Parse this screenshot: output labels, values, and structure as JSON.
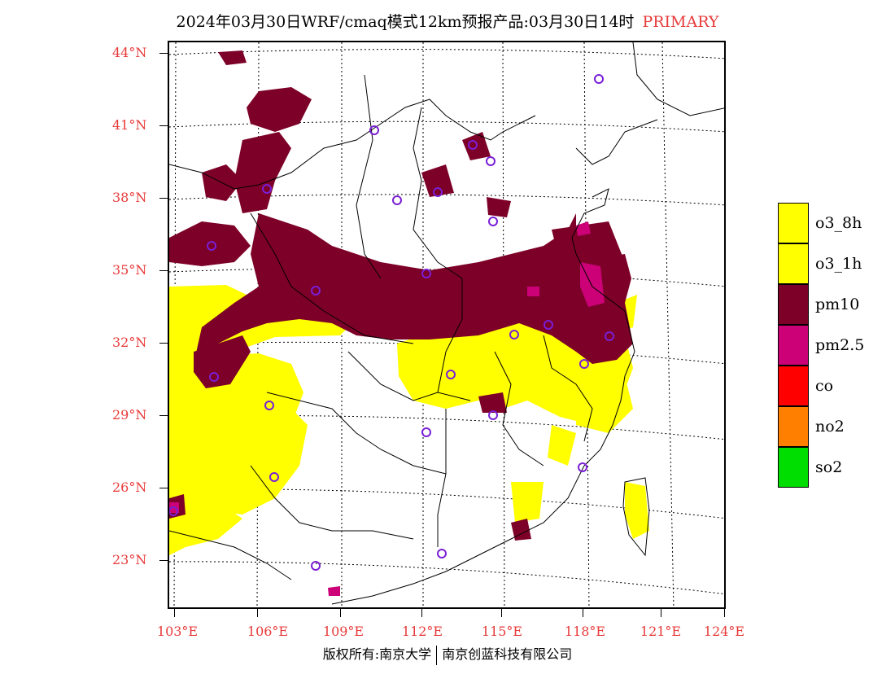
{
  "title": {
    "main": "2024年03月30日WRF/cmaq模式12km预报产品:03月30日14时",
    "tag": "PRIMARY"
  },
  "colors": {
    "o3_8h": "#ffff00",
    "o3_1h": "#ffff00",
    "pm10": "#7d0028",
    "pm2_5": "#cc0077",
    "co": "#ff0000",
    "no2": "#ff7f00",
    "so2": "#00dd00",
    "label_red": "#e83a3a",
    "station_ring": "#7a1fd6"
  },
  "lat_labels": [
    "44°N",
    "41°N",
    "38°N",
    "35°N",
    "32°N",
    "29°N",
    "26°N",
    "23°N"
  ],
  "lon_labels": [
    "103°E",
    "106°E",
    "109°E",
    "112°E",
    "115°E",
    "118°E",
    "121°E",
    "124°E"
  ],
  "legend": [
    {
      "label": "o3_8h",
      "color": "#ffff00"
    },
    {
      "label": "o3_1h",
      "color": "#ffff00"
    },
    {
      "label": "pm10",
      "color": "#7d0028"
    },
    {
      "label": "pm2.5",
      "color": "#cc0077"
    },
    {
      "label": "co",
      "color": "#ff0000"
    },
    {
      "label": "no2",
      "color": "#ff7f00"
    },
    {
      "label": "so2",
      "color": "#00dd00"
    }
  ],
  "copyright": {
    "left": "版权所有:南京大学",
    "right": "南京创蓝科技有限公司"
  }
}
